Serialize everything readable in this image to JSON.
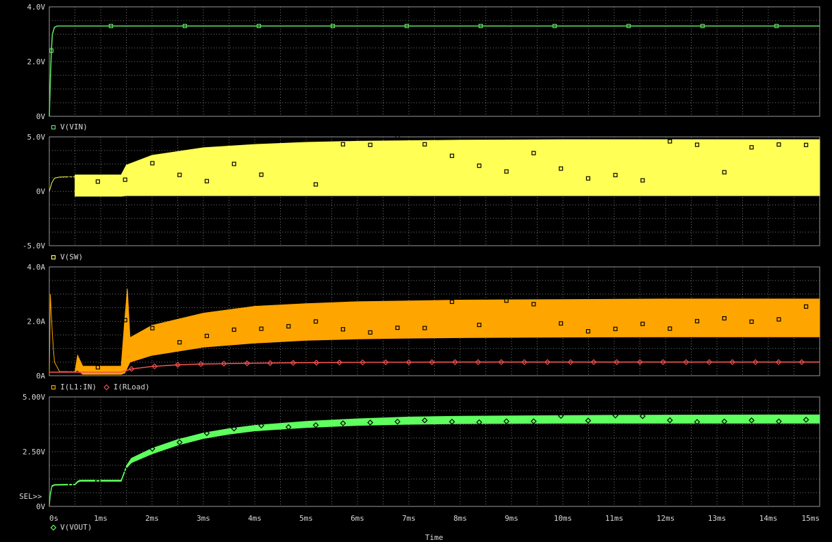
{
  "chart_data": [
    {
      "type": "line",
      "ylim": [
        0,
        4
      ],
      "yticks": [
        "4.0V",
        "2.0V",
        "0V"
      ],
      "legend": [
        {
          "label": "V(VIN)",
          "color": "#5fe05f",
          "marker": "square"
        }
      ],
      "series": [
        {
          "name": "V(VIN)",
          "color": "#5fe05f",
          "marker": "square",
          "x": [
            0,
            0.02,
            0.04,
            0.06,
            0.1,
            0.15,
            0.25,
            15
          ],
          "y": [
            0,
            1.3,
            2.4,
            3.0,
            3.25,
            3.3,
            3.3,
            3.3
          ],
          "marker_x": [
            0.04,
            1.2,
            2.64,
            4.08,
            5.52,
            6.96,
            8.4,
            9.84,
            11.28,
            12.72,
            14.16
          ]
        }
      ]
    },
    {
      "type": "area",
      "ylim": [
        -5,
        5
      ],
      "yticks": [
        "5.0V",
        "0V",
        "-5.0V"
      ],
      "legend": [
        {
          "label": "V(SW)",
          "color": "#ffff55",
          "marker": "square"
        }
      ],
      "series": [
        {
          "name": "V(SW)",
          "color": "#ffff55",
          "marker": "square",
          "x": [
            0,
            0.05,
            0.1,
            0.2,
            0.5,
            0.5,
            1.4,
            1.5,
            2,
            3,
            4,
            5,
            6,
            8,
            10,
            12,
            15
          ],
          "upper": [
            0,
            0.8,
            1.2,
            1.3,
            1.35,
            1.5,
            1.5,
            2.4,
            3.3,
            4.0,
            4.3,
            4.5,
            4.6,
            4.7,
            4.75,
            4.75,
            4.75
          ],
          "lower": [
            0,
            0.8,
            1.2,
            1.3,
            1.35,
            -0.45,
            -0.45,
            -0.4,
            -0.4,
            -0.4,
            -0.4,
            -0.4,
            -0.4,
            -0.4,
            -0.4,
            -0.4,
            -0.4
          ]
        }
      ]
    },
    {
      "type": "area",
      "ylim": [
        0,
        4
      ],
      "yticks": [
        "4.0A",
        "2.0A",
        "0A"
      ],
      "legend": [
        {
          "label": "I(L1:IN)",
          "color": "#ffa500",
          "marker": "square"
        },
        {
          "label": "I(RLoad)",
          "color": "#f05050",
          "marker": "diamond"
        }
      ],
      "series": [
        {
          "name": "I(L1:IN)",
          "color": "#ffa500",
          "marker": "square",
          "x": [
            0,
            0.02,
            0.06,
            0.1,
            0.2,
            0.5,
            0.55,
            0.65,
            1.4,
            1.47,
            1.52,
            1.57,
            2,
            3,
            4,
            5,
            6,
            7,
            8,
            10,
            12,
            15
          ],
          "upper": [
            0,
            3.0,
            1.5,
            0.5,
            0.15,
            0.15,
            0.75,
            0.35,
            0.35,
            2.1,
            3.2,
            1.4,
            1.85,
            2.3,
            2.55,
            2.65,
            2.72,
            2.75,
            2.78,
            2.8,
            2.82,
            2.82
          ],
          "lower": [
            0,
            3.0,
            1.5,
            0.5,
            0.15,
            0.15,
            0.2,
            0.05,
            0.05,
            0.1,
            0.3,
            0.5,
            0.75,
            1.05,
            1.2,
            1.3,
            1.35,
            1.38,
            1.4,
            1.42,
            1.43,
            1.43
          ]
        },
        {
          "name": "I(RLoad)",
          "color": "#f05050",
          "marker": "diamond",
          "x": [
            0,
            0.5,
            1.4,
            1.6,
            2,
            2.5,
            3,
            4,
            5,
            6,
            8,
            10,
            15
          ],
          "y": [
            0.13,
            0.13,
            0.13,
            0.25,
            0.34,
            0.4,
            0.43,
            0.46,
            0.48,
            0.49,
            0.5,
            0.5,
            0.5
          ]
        }
      ]
    },
    {
      "type": "area",
      "ylim": [
        0,
        5
      ],
      "yticks": [
        "5.00V",
        "2.50V",
        "0V"
      ],
      "legend": [
        {
          "label": "V(VOUT)",
          "color": "#5fff5f",
          "marker": "diamond"
        }
      ],
      "series": [
        {
          "name": "V(VOUT)",
          "color": "#5fff5f",
          "marker": "diamond",
          "x": [
            0,
            0.02,
            0.05,
            0.1,
            0.5,
            0.55,
            0.6,
            1.4,
            1.5,
            1.6,
            2,
            2.5,
            3,
            3.5,
            4,
            5,
            6,
            7,
            8,
            10,
            12,
            15
          ],
          "upper": [
            0,
            0.6,
            0.95,
            1.0,
            1.02,
            1.15,
            1.2,
            1.2,
            1.85,
            2.2,
            2.65,
            3.05,
            3.35,
            3.55,
            3.7,
            3.88,
            4.0,
            4.08,
            4.12,
            4.15,
            4.17,
            4.18
          ],
          "lower": [
            0,
            0.5,
            0.9,
            0.97,
            0.98,
            1.1,
            1.15,
            1.15,
            1.75,
            2.0,
            2.4,
            2.8,
            3.1,
            3.3,
            3.45,
            3.6,
            3.7,
            3.75,
            3.78,
            3.8,
            3.8,
            3.8
          ]
        }
      ]
    }
  ],
  "x_axis": {
    "label": "Time",
    "range": [
      0,
      15
    ],
    "ticks": [
      "0s",
      "1ms",
      "2ms",
      "3ms",
      "4ms",
      "5ms",
      "6ms",
      "7ms",
      "8ms",
      "9ms",
      "10ms",
      "11ms",
      "12ms",
      "13ms",
      "14ms",
      "15ms"
    ]
  },
  "cursor_label": "SEL>>",
  "grid": true
}
